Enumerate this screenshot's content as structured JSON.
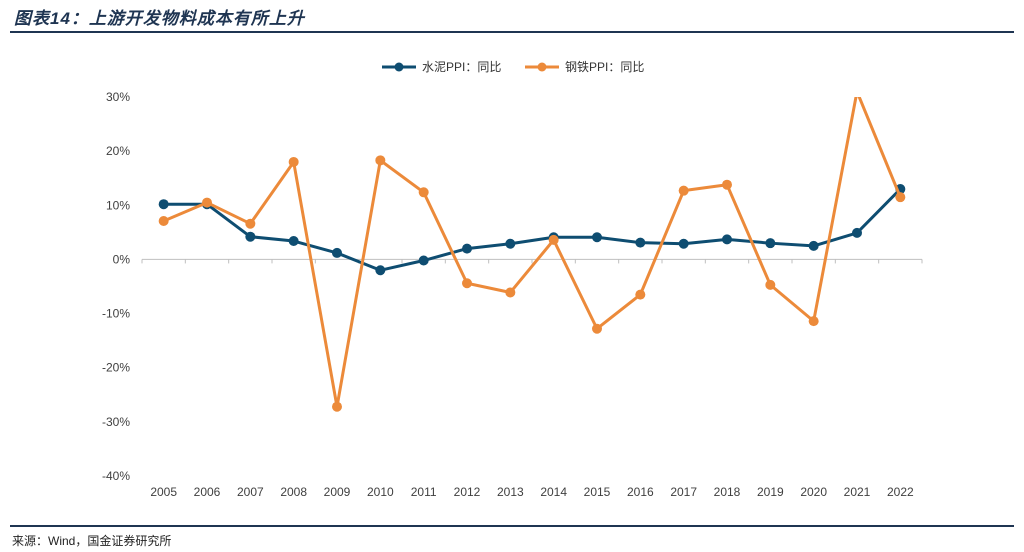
{
  "figure": {
    "title": "图表14：上游开发物料成本有所上升",
    "source": "来源：Wind，国金证券研究所"
  },
  "chart_data": {
    "type": "line",
    "categories": [
      "2005",
      "2006",
      "2007",
      "2008",
      "2009",
      "2010",
      "2011",
      "2012",
      "2013",
      "2014",
      "2015",
      "2016",
      "2017",
      "2018",
      "2019",
      "2020",
      "2021",
      "2022"
    ],
    "series": [
      {
        "name": "水泥PPI：同比",
        "color": "#0e4d71",
        "values": [
          10.2,
          10.2,
          4.2,
          3.4,
          1.2,
          -2.0,
          -0.2,
          2.0,
          2.9,
          4.1,
          4.1,
          3.1,
          2.9,
          3.7,
          3.0,
          2.5,
          4.9,
          13.0
        ]
      },
      {
        "name": "钢铁PPI：同比",
        "color": "#ec8a3a",
        "values": [
          7.1,
          10.5,
          6.6,
          18.0,
          -27.2,
          18.3,
          12.4,
          -4.4,
          -6.1,
          3.6,
          -12.8,
          -6.5,
          12.7,
          13.8,
          -4.7,
          -11.4,
          31.0,
          11.5
        ]
      }
    ],
    "ylim": [
      -40,
      30
    ],
    "yticks": [
      30,
      20,
      10,
      0,
      -10,
      -20,
      -30,
      -40
    ],
    "ytick_labels": [
      "30%",
      "20%",
      "10%",
      "0%",
      "-10%",
      "-20%",
      "-30%",
      "-40%"
    ],
    "clip_above_max": true,
    "legend_position": "top-center",
    "grid": false
  }
}
